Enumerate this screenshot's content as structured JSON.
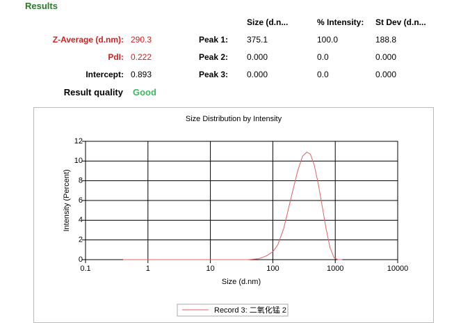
{
  "results": {
    "title": "Results",
    "columns": [
      "Size (d.n...",
      "% Intensity:",
      "St Dev (d.n..."
    ],
    "summary": [
      {
        "label": "Z-Average (d.nm):",
        "value": "290.3"
      },
      {
        "label": "PdI:",
        "value": "0.222"
      },
      {
        "label": "Intercept:",
        "value": "0.893"
      }
    ],
    "peaks": [
      {
        "label": "Peak 1:",
        "cells": [
          "375.1",
          "100.0",
          "188.8"
        ]
      },
      {
        "label": "Peak 2:",
        "cells": [
          "0.000",
          "0.0",
          "0.000"
        ]
      },
      {
        "label": "Peak 3:",
        "cells": [
          "0.000",
          "0.0",
          "0.000"
        ]
      }
    ],
    "quality_label": "Result quality",
    "quality": "Good"
  },
  "chart_data": {
    "type": "line",
    "title": "Size Distribution by Intensity",
    "x_label": "Size (d.nm)",
    "y_label": "Intensity (Percent)",
    "xscale": "log",
    "xlim": [
      0.1,
      10000
    ],
    "xticks": [
      0.1,
      1,
      10,
      100,
      1000,
      10000
    ],
    "ylim": [
      0,
      12
    ],
    "yticks": [
      0,
      2,
      4,
      6,
      8,
      10,
      12
    ],
    "grid": true,
    "x": [
      0.4,
      1,
      4,
      10,
      40,
      60,
      80,
      100,
      120,
      150,
      200,
      250,
      300,
      350,
      400,
      460,
      530,
      615,
      710,
      825,
      955,
      1100,
      1300
    ],
    "series": [
      {
        "name": "Record 3: 二氧化锰 2",
        "color": "#e06060",
        "values": [
          0,
          0,
          0,
          0,
          0,
          0.1,
          0.4,
          0.8,
          1.5,
          3.2,
          6.5,
          9.0,
          10.5,
          10.9,
          10.7,
          9.6,
          7.8,
          5.5,
          3.2,
          1.2,
          0.2,
          0,
          0
        ]
      }
    ]
  }
}
